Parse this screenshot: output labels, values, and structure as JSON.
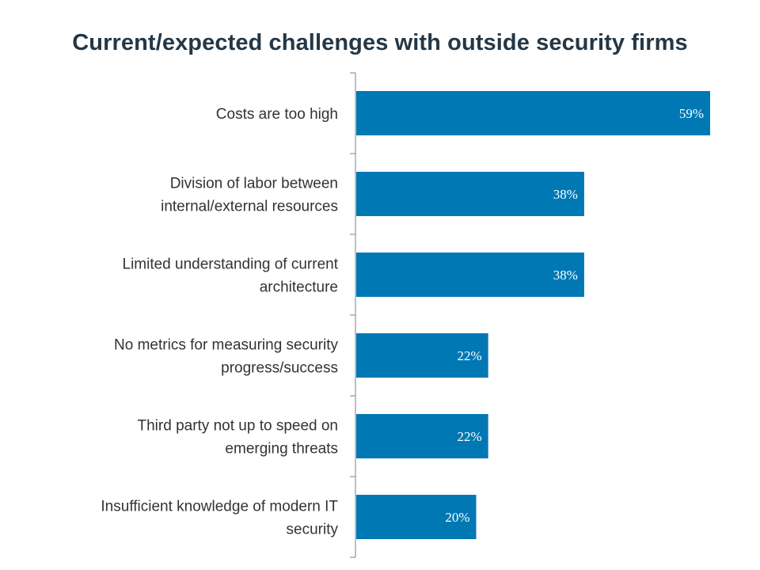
{
  "title": "Current/expected challenges with outside security firms",
  "colors": {
    "bar": "#0078B4",
    "axis": "#7f7f7f",
    "title": "#243746",
    "label": "#333333"
  },
  "chart_data": {
    "type": "bar",
    "orientation": "horizontal",
    "title": "Current/expected challenges with outside security firms",
    "categories": [
      [
        "Costs are too high"
      ],
      [
        "Division of labor between",
        "internal/external resources"
      ],
      [
        "Limited understanding of current",
        "architecture"
      ],
      [
        "No metrics for measuring security",
        "progress/success"
      ],
      [
        "Third party not up to speed on",
        "emerging threats"
      ],
      [
        "Insufficient knowledge of modern IT",
        "security"
      ]
    ],
    "values": [
      59,
      38,
      38,
      22,
      22,
      20
    ],
    "value_labels": [
      "59%",
      "38%",
      "38%",
      "22%",
      "22%",
      "20%"
    ],
    "xlim": [
      0,
      60
    ],
    "grid": false,
    "legend": "none"
  }
}
